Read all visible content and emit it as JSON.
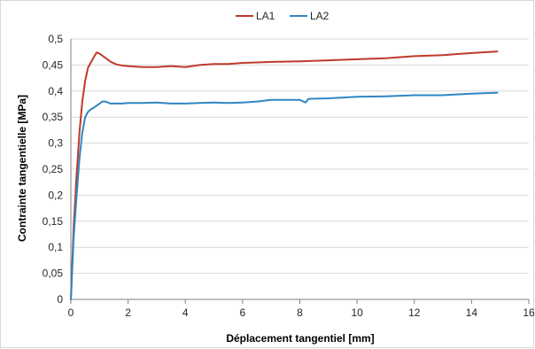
{
  "chart_data": {
    "type": "line",
    "xlabel": "Déplacement tangentiel [mm]",
    "ylabel": "Contrainte tangentielle [MPa]",
    "xlim": [
      0,
      16
    ],
    "ylim": [
      0,
      0.5
    ],
    "xticks": [
      0,
      2,
      4,
      6,
      8,
      10,
      12,
      14,
      16
    ],
    "xtick_labels": [
      "0",
      "2",
      "4",
      "6",
      "8",
      "10",
      "12",
      "14",
      "16"
    ],
    "yticks": [
      0,
      0.05,
      0.1,
      0.15,
      0.2,
      0.25,
      0.3,
      0.35,
      0.4,
      0.45,
      0.5
    ],
    "ytick_labels": [
      "0",
      "0,05",
      "0,1",
      "0,15",
      "0,2",
      "0,25",
      "0,3",
      "0,35",
      "0,4",
      "0,45",
      "0,5"
    ],
    "grid": "horizontal",
    "legend_position": "top",
    "series": [
      {
        "name": "LA1",
        "color": "#c0392b",
        "x": [
          0,
          0.1,
          0.2,
          0.3,
          0.4,
          0.5,
          0.6,
          0.7,
          0.8,
          0.9,
          1.0,
          1.2,
          1.4,
          1.6,
          1.8,
          2.0,
          2.5,
          3.0,
          3.5,
          4.0,
          4.5,
          5.0,
          5.5,
          6.0,
          6.5,
          7.0,
          8.0,
          9.0,
          10.0,
          11.0,
          12.0,
          13.0,
          14.0,
          14.9
        ],
        "y": [
          0,
          0.14,
          0.24,
          0.32,
          0.38,
          0.42,
          0.445,
          0.455,
          0.465,
          0.474,
          0.472,
          0.464,
          0.456,
          0.451,
          0.449,
          0.448,
          0.446,
          0.446,
          0.448,
          0.446,
          0.45,
          0.452,
          0.452,
          0.454,
          0.455,
          0.456,
          0.457,
          0.459,
          0.461,
          0.463,
          0.467,
          0.469,
          0.473,
          0.476
        ]
      },
      {
        "name": "LA2",
        "color": "#2e86c1",
        "x": [
          0,
          0.1,
          0.2,
          0.3,
          0.4,
          0.5,
          0.6,
          0.7,
          0.8,
          0.9,
          1.0,
          1.1,
          1.2,
          1.4,
          1.6,
          1.8,
          2.0,
          2.5,
          3.0,
          3.5,
          4.0,
          4.5,
          5.0,
          5.5,
          6.0,
          6.5,
          7.0,
          8.0,
          8.2,
          8.3,
          9.0,
          10.0,
          11.0,
          12.0,
          13.0,
          14.0,
          14.9
        ],
        "y": [
          0,
          0.12,
          0.2,
          0.27,
          0.32,
          0.35,
          0.36,
          0.365,
          0.368,
          0.372,
          0.376,
          0.38,
          0.38,
          0.376,
          0.376,
          0.376,
          0.377,
          0.377,
          0.378,
          0.376,
          0.376,
          0.377,
          0.378,
          0.377,
          0.378,
          0.38,
          0.383,
          0.383,
          0.378,
          0.385,
          0.386,
          0.389,
          0.39,
          0.392,
          0.392,
          0.395,
          0.397
        ]
      }
    ]
  }
}
